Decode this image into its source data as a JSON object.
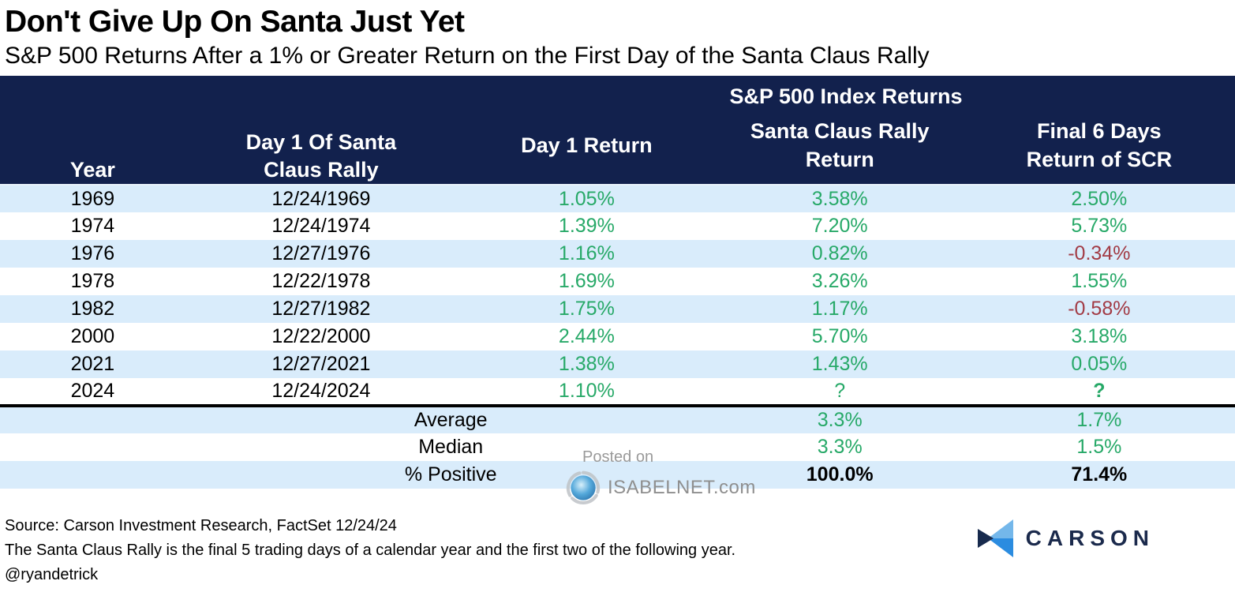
{
  "title": "Don't Give Up On Santa Just Yet",
  "subtitle": "S&P 500 Returns After a 1% or Greater Return on the First Day of the Santa Claus Rally",
  "table": {
    "group_header": "S&P 500 Index Returns",
    "columns": {
      "year": "Year",
      "day1_date": "Day 1 Of Santa\nClaus Rally",
      "day1_return": "Day 1 Return",
      "scr_return": "Santa Claus Rally\nReturn",
      "final6_return": "Final 6 Days\nReturn of SCR"
    },
    "rows": [
      {
        "year": "1969",
        "date": "12/24/1969",
        "day1": "1.05%",
        "scr": "3.58%",
        "final6": "2.50%"
      },
      {
        "year": "1974",
        "date": "12/24/1974",
        "day1": "1.39%",
        "scr": "7.20%",
        "final6": "5.73%"
      },
      {
        "year": "1976",
        "date": "12/27/1976",
        "day1": "1.16%",
        "scr": "0.82%",
        "final6": "-0.34%"
      },
      {
        "year": "1978",
        "date": "12/22/1978",
        "day1": "1.69%",
        "scr": "3.26%",
        "final6": "1.55%"
      },
      {
        "year": "1982",
        "date": "12/27/1982",
        "day1": "1.75%",
        "scr": "1.17%",
        "final6": "-0.58%"
      },
      {
        "year": "2000",
        "date": "12/22/2000",
        "day1": "2.44%",
        "scr": "5.70%",
        "final6": "3.18%"
      },
      {
        "year": "2021",
        "date": "12/27/2021",
        "day1": "1.38%",
        "scr": "1.43%",
        "final6": "0.05%"
      },
      {
        "year": "2024",
        "date": "12/24/2024",
        "day1": "1.10%",
        "scr": "?",
        "final6": "?",
        "final6_bold": true
      }
    ],
    "summary": [
      {
        "label": "Average",
        "scr": "3.3%",
        "final6": "1.7%",
        "color": "green"
      },
      {
        "label": "Median",
        "scr": "3.3%",
        "final6": "1.5%",
        "color": "green"
      },
      {
        "label": "% Positive",
        "scr": "100.0%",
        "final6": "71.4%",
        "color": "black"
      }
    ]
  },
  "watermark": {
    "line1": "Posted on",
    "line2": "ISABELNET.com"
  },
  "footer": {
    "source": "Source: Carson Investment Research, FactSet 12/24/24",
    "note": "The Santa Claus Rally is the final 5 trading days of a calendar year and the first two of the following year.",
    "handle": "@ryandetrick",
    "logo_text": "CARSON"
  },
  "colors": {
    "header_navy": "#12214d",
    "row_light_blue": "#d9ecfb",
    "positive_green": "#27a968",
    "negative_red": "#a23b45",
    "watermark_gray": "#9a9a9a",
    "logo_navy": "#1b2a4c",
    "logo_light_blue": "#74b7ea",
    "logo_mid_blue": "#2b8ce0"
  },
  "chart_data": {
    "type": "table",
    "title": "Don't Give Up On Santa Just Yet",
    "subtitle": "S&P 500 Returns After a 1% or Greater Return on the First Day of the Santa Claus Rally",
    "group_header": "S&P 500 Index Returns",
    "columns": [
      "Year",
      "Day 1 Of Santa Claus Rally",
      "Day 1 Return",
      "Santa Claus Rally Return",
      "Final 6 Days Return of SCR"
    ],
    "rows": [
      [
        "1969",
        "12/24/1969",
        "1.05%",
        "3.58%",
        "2.50%"
      ],
      [
        "1974",
        "12/24/1974",
        "1.39%",
        "7.20%",
        "5.73%"
      ],
      [
        "1976",
        "12/27/1976",
        "1.16%",
        "0.82%",
        "-0.34%"
      ],
      [
        "1978",
        "12/22/1978",
        "1.69%",
        "3.26%",
        "1.55%"
      ],
      [
        "1982",
        "12/27/1982",
        "1.75%",
        "1.17%",
        "-0.58%"
      ],
      [
        "2000",
        "12/22/2000",
        "2.44%",
        "5.70%",
        "3.18%"
      ],
      [
        "2021",
        "12/27/2021",
        "1.38%",
        "1.43%",
        "0.05%"
      ],
      [
        "2024",
        "12/24/2024",
        "1.10%",
        "?",
        "?"
      ]
    ],
    "summary_rows": [
      [
        "Average",
        "3.3%",
        "1.7%"
      ],
      [
        "Median",
        "3.3%",
        "1.5%"
      ],
      [
        "% Positive",
        "100.0%",
        "71.4%"
      ]
    ]
  }
}
